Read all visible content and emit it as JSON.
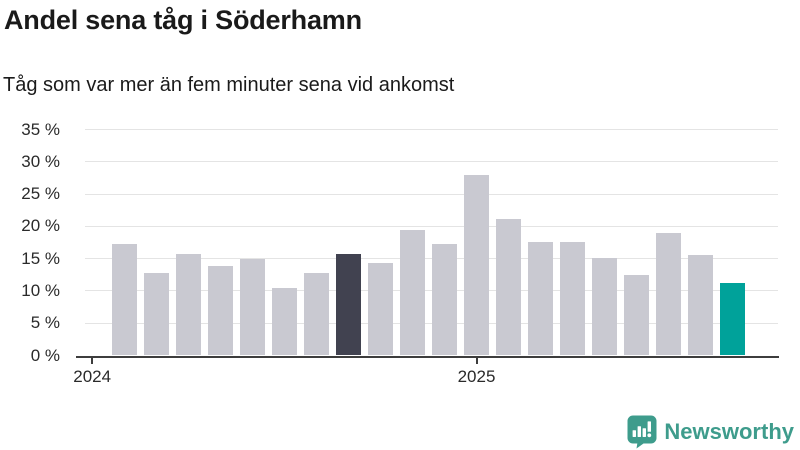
{
  "header": {
    "title": "Andel sena tåg i Söderhamn",
    "subtitle": "Tåg som var mer än fem minuter sena vid ankomst"
  },
  "chart_data": {
    "type": "bar",
    "title": "Andel sena tåg i Söderhamn",
    "subtitle": "Tåg som var mer än fem minuter sena vid ankomst",
    "unit": "%",
    "categories": [
      "2024-02",
      "2024-03",
      "2024-04",
      "2024-05",
      "2024-06",
      "2024-07",
      "2024-08",
      "2024-09",
      "2024-10",
      "2024-11",
      "2024-12",
      "2025-01",
      "2025-02",
      "2025-03",
      "2025-04",
      "2025-05",
      "2025-06",
      "2025-07",
      "2025-08",
      "2025-09"
    ],
    "values": [
      17.3,
      12.8,
      15.7,
      13.8,
      15.0,
      10.4,
      12.8,
      15.7,
      14.3,
      19.5,
      17.2,
      27.9,
      21.1,
      17.6,
      17.6,
      15.1,
      12.4,
      18.9,
      15.6,
      11.2
    ],
    "ylim": [
      0,
      35
    ],
    "yticks": [
      {
        "value": 0,
        "label": "0 %"
      },
      {
        "value": 5,
        "label": "5 %"
      },
      {
        "value": 10,
        "label": "10 %"
      },
      {
        "value": 15,
        "label": "15 %"
      },
      {
        "value": 20,
        "label": "20 %"
      },
      {
        "value": 25,
        "label": "25 %"
      },
      {
        "value": 30,
        "label": "30 %"
      },
      {
        "value": 35,
        "label": "35 %"
      }
    ],
    "xticks": [
      {
        "label": "2024",
        "slot": -1
      },
      {
        "label": "2025",
        "slot": 11
      }
    ],
    "grid": true,
    "legend": "none",
    "highlight": {
      "dark_index": 7,
      "teal_index": 19
    },
    "colors": {
      "bar_default": "#c9c9d1",
      "bar_dark": "#414250",
      "bar_teal": "#00a29a",
      "gridline": "#e4e4e4",
      "axis": "#3d3d3d",
      "tick_text": "#2a2a2a"
    }
  },
  "footer": {
    "brand": "Newsworthy",
    "brand_color": "#3e9c8c"
  }
}
